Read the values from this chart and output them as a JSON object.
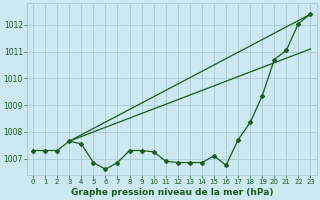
{
  "title": "Graphe pression niveau de la mer (hPa)",
  "background_color": "#cce8f0",
  "grid_color": "#aaccd8",
  "line_color": "#1a5c1a",
  "xlim": [
    -0.5,
    23.5
  ],
  "ylim": [
    1006.4,
    1012.8
  ],
  "yticks": [
    1007,
    1008,
    1009,
    1010,
    1011,
    1012
  ],
  "xticks": [
    0,
    1,
    2,
    3,
    4,
    5,
    6,
    7,
    8,
    9,
    10,
    11,
    12,
    13,
    14,
    15,
    16,
    17,
    18,
    19,
    20,
    21,
    22,
    23
  ],
  "series1_x": [
    3,
    23
  ],
  "series1_y": [
    1007.65,
    1012.4
  ],
  "series2_x": [
    3,
    23
  ],
  "series2_y": [
    1007.65,
    1011.1
  ],
  "series3_x": [
    0,
    1,
    2,
    3,
    4,
    5,
    6,
    7,
    8,
    9,
    10,
    11,
    12,
    13,
    14,
    15,
    16,
    17,
    18,
    19,
    20,
    21,
    22,
    23
  ],
  "series3_y": [
    1007.3,
    1007.3,
    1007.3,
    1007.65,
    1007.55,
    1006.85,
    1006.6,
    1006.85,
    1007.3,
    1007.3,
    1007.25,
    1006.9,
    1006.85,
    1006.85,
    1006.85,
    1007.1,
    1006.75,
    1007.7,
    1008.35,
    1009.35,
    1010.7,
    1011.05,
    1012.05,
    1012.4
  ],
  "ylabel_fontsize": 5.5,
  "xlabel_fontsize": 6.5,
  "tick_fontsize": 5.0,
  "marker_size": 2.0,
  "linewidth": 0.9
}
